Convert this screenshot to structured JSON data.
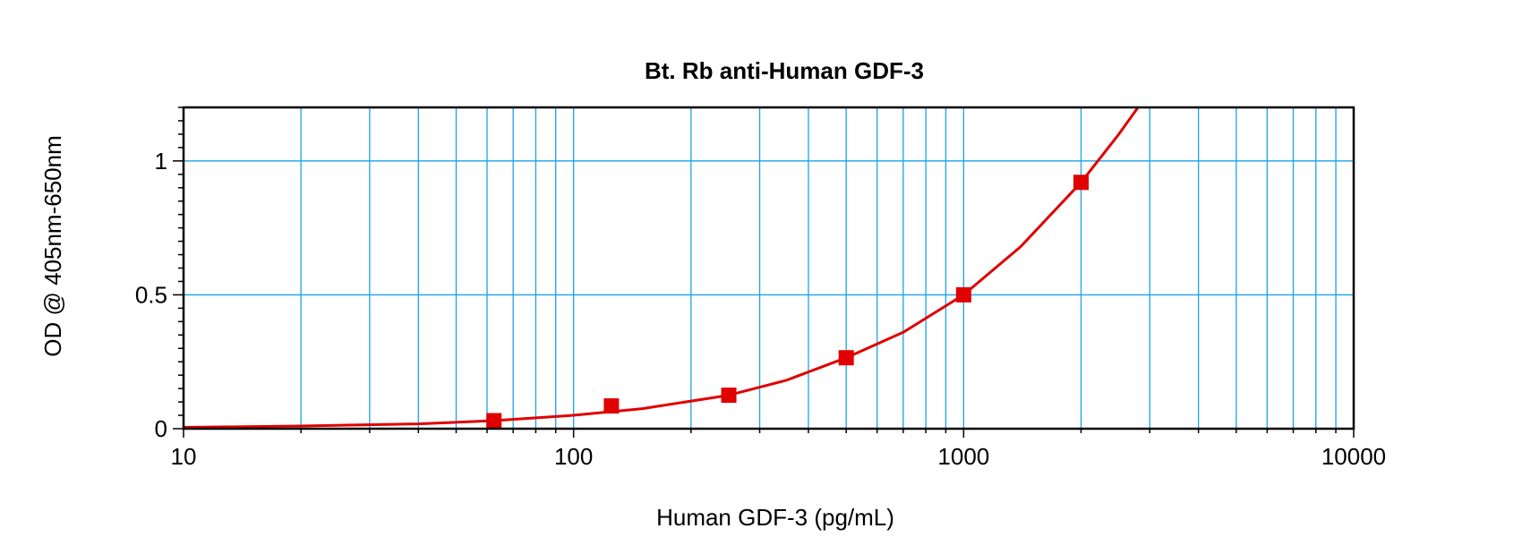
{
  "chart_data": {
    "type": "scatter",
    "title": "Bt. Rb anti-Human GDF-3",
    "xlabel": "Human GDF-3 (pg/mL)",
    "ylabel": "OD @ 405nm-650nm",
    "xscale": "log",
    "xlim": [
      10,
      10000
    ],
    "ylim": [
      0,
      1.2
    ],
    "x_ticks": [
      10,
      100,
      1000,
      10000
    ],
    "x_tick_labels": [
      "10",
      "100",
      "1000",
      "10000"
    ],
    "y_ticks": [
      0,
      0.5,
      1
    ],
    "y_tick_labels": [
      "0",
      "0.5",
      "1"
    ],
    "grid": true,
    "legend": "none",
    "colors": {
      "series": "#e00000",
      "grid": "#1aa3e8",
      "frame": "#000000"
    },
    "series": [
      {
        "marker": "square",
        "points": [
          {
            "x": 62.5,
            "y": 0.03
          },
          {
            "x": 125,
            "y": 0.085
          },
          {
            "x": 250,
            "y": 0.125
          },
          {
            "x": 500,
            "y": 0.265
          },
          {
            "x": 1000,
            "y": 0.5
          },
          {
            "x": 2000,
            "y": 0.92
          }
        ],
        "fit_curve": [
          {
            "x": 10,
            "y": 0.005
          },
          {
            "x": 20,
            "y": 0.01
          },
          {
            "x": 40,
            "y": 0.018
          },
          {
            "x": 62.5,
            "y": 0.03
          },
          {
            "x": 100,
            "y": 0.05
          },
          {
            "x": 150,
            "y": 0.075
          },
          {
            "x": 250,
            "y": 0.125
          },
          {
            "x": 350,
            "y": 0.18
          },
          {
            "x": 500,
            "y": 0.265
          },
          {
            "x": 700,
            "y": 0.36
          },
          {
            "x": 1000,
            "y": 0.5
          },
          {
            "x": 1400,
            "y": 0.68
          },
          {
            "x": 2000,
            "y": 0.92
          },
          {
            "x": 2500,
            "y": 1.1
          },
          {
            "x": 2800,
            "y": 1.2
          }
        ]
      }
    ]
  }
}
